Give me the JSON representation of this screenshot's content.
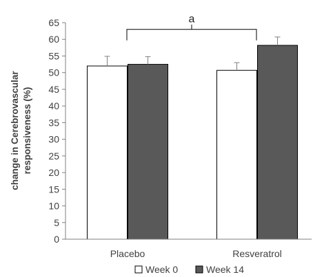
{
  "chart_data": {
    "type": "bar",
    "categories": [
      "Placebo",
      "Resveratrol"
    ],
    "series": [
      {
        "name": "Week 0",
        "values": [
          52,
          50.7
        ],
        "errors": [
          2.9,
          2.3
        ],
        "color": "#ffffff"
      },
      {
        "name": "Week 14",
        "values": [
          52.5,
          58.2
        ],
        "errors": [
          2.3,
          2.5
        ],
        "color": "#595959"
      }
    ],
    "ylabel_lines": [
      "change in Cerebrovascular",
      "responsiveness (%)"
    ],
    "xlabel": "",
    "ylim": [
      0,
      65
    ],
    "yticks": [
      0,
      5,
      10,
      15,
      20,
      25,
      30,
      35,
      40,
      45,
      50,
      55,
      60,
      65
    ],
    "grid": false,
    "legend_position": "bottom",
    "annotation": {
      "text": "a",
      "bracket_height": 63
    }
  }
}
